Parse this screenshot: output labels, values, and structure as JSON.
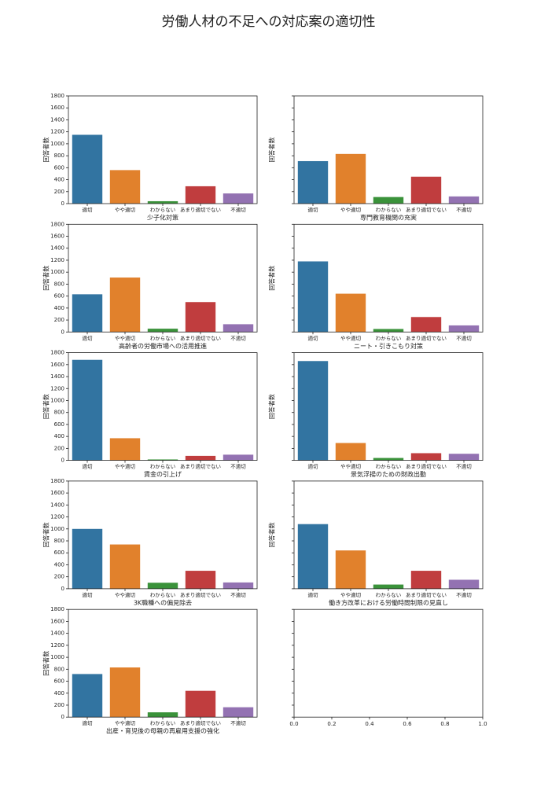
{
  "title": "労働人材の不足への対応案の適切性",
  "chart_data": [
    {
      "type": "bar",
      "xlabel": "少子化対策",
      "ylabel": "回答者数",
      "categories": [
        "適切",
        "やや適切",
        "わからない",
        "あまり適切でない",
        "不適切"
      ],
      "values": [
        1150,
        560,
        40,
        290,
        170
      ],
      "colors": [
        "#3274a1",
        "#e1812c",
        "#3a923a",
        "#c03d3e",
        "#9372b2"
      ],
      "ylim": [
        0,
        1800
      ],
      "yticks": [
        0,
        200,
        400,
        600,
        800,
        1000,
        1200,
        1400,
        1600,
        1800
      ],
      "ytick_labels": true
    },
    {
      "type": "bar",
      "xlabel": "専門教育機関の充実",
      "ylabel": "回答者数",
      "categories": [
        "適切",
        "やや適切",
        "わからない",
        "あまり適切でない",
        "不適切"
      ],
      "values": [
        710,
        830,
        110,
        450,
        120
      ],
      "colors": [
        "#3274a1",
        "#e1812c",
        "#3a923a",
        "#c03d3e",
        "#9372b2"
      ],
      "ylim": [
        0,
        1800
      ],
      "yticks": [
        0,
        200,
        400,
        600,
        800,
        1000,
        1200,
        1400,
        1600,
        1800
      ],
      "ytick_labels": false
    },
    {
      "type": "bar",
      "xlabel": "高齢者の労働市場への活用推進",
      "ylabel": "回答者数",
      "categories": [
        "適切",
        "やや適切",
        "わからない",
        "あまり適切でない",
        "不適切"
      ],
      "values": [
        630,
        910,
        55,
        500,
        130
      ],
      "colors": [
        "#3274a1",
        "#e1812c",
        "#3a923a",
        "#c03d3e",
        "#9372b2"
      ],
      "ylim": [
        0,
        1800
      ],
      "yticks": [
        0,
        200,
        400,
        600,
        800,
        1000,
        1200,
        1400,
        1600,
        1800
      ],
      "ytick_labels": true
    },
    {
      "type": "bar",
      "xlabel": "ニート・引きこもり対策",
      "ylabel": "回答者数",
      "categories": [
        "適切",
        "やや適切",
        "わからない",
        "あまり適切でない",
        "不適切"
      ],
      "values": [
        1180,
        640,
        50,
        250,
        110
      ],
      "colors": [
        "#3274a1",
        "#e1812c",
        "#3a923a",
        "#c03d3e",
        "#9372b2"
      ],
      "ylim": [
        0,
        1800
      ],
      "yticks": [
        0,
        200,
        400,
        600,
        800,
        1000,
        1200,
        1400,
        1600,
        1800
      ],
      "ytick_labels": false
    },
    {
      "type": "bar",
      "xlabel": "賃金の引上げ",
      "ylabel": "回答者数",
      "categories": [
        "適切",
        "やや適切",
        "わからない",
        "あまり適切でない",
        "不適切"
      ],
      "values": [
        1680,
        370,
        15,
        75,
        95
      ],
      "colors": [
        "#3274a1",
        "#e1812c",
        "#3a923a",
        "#c03d3e",
        "#9372b2"
      ],
      "ylim": [
        0,
        1800
      ],
      "yticks": [
        0,
        200,
        400,
        600,
        800,
        1000,
        1200,
        1400,
        1600,
        1800
      ],
      "ytick_labels": true
    },
    {
      "type": "bar",
      "xlabel": "景気浮揚のための財政出動",
      "ylabel": "回答者数",
      "categories": [
        "適切",
        "やや適切",
        "わからない",
        "あまり適切でない",
        "不適切"
      ],
      "values": [
        1660,
        290,
        40,
        120,
        110
      ],
      "colors": [
        "#3274a1",
        "#e1812c",
        "#3a923a",
        "#c03d3e",
        "#9372b2"
      ],
      "ylim": [
        0,
        1800
      ],
      "yticks": [
        0,
        200,
        400,
        600,
        800,
        1000,
        1200,
        1400,
        1600,
        1800
      ],
      "ytick_labels": false
    },
    {
      "type": "bar",
      "xlabel": "3K職種への偏見除去",
      "ylabel": "回答者数",
      "categories": [
        "適切",
        "やや適切",
        "わからない",
        "あまり適切でない",
        "不適切"
      ],
      "values": [
        1000,
        740,
        100,
        300,
        105
      ],
      "colors": [
        "#3274a1",
        "#e1812c",
        "#3a923a",
        "#c03d3e",
        "#9372b2"
      ],
      "ylim": [
        0,
        1800
      ],
      "yticks": [
        0,
        200,
        400,
        600,
        800,
        1000,
        1200,
        1400,
        1600,
        1800
      ],
      "ytick_labels": true
    },
    {
      "type": "bar",
      "xlabel": "働き方改革における労働時間制限の見直し",
      "ylabel": "回答者数",
      "categories": [
        "適切",
        "やや適切",
        "わからない",
        "あまり適切でない",
        "不適切"
      ],
      "values": [
        1080,
        640,
        70,
        300,
        150
      ],
      "colors": [
        "#3274a1",
        "#e1812c",
        "#3a923a",
        "#c03d3e",
        "#9372b2"
      ],
      "ylim": [
        0,
        1800
      ],
      "yticks": [
        0,
        200,
        400,
        600,
        800,
        1000,
        1200,
        1400,
        1600,
        1800
      ],
      "ytick_labels": false
    },
    {
      "type": "bar",
      "xlabel": "出産・育児後の母親の再雇用支援の強化",
      "ylabel": "回答者数",
      "categories": [
        "適切",
        "やや適切",
        "わからない",
        "あまり適切でない",
        "不適切"
      ],
      "values": [
        720,
        830,
        80,
        440,
        165
      ],
      "colors": [
        "#3274a1",
        "#e1812c",
        "#3a923a",
        "#c03d3e",
        "#9372b2"
      ],
      "ylim": [
        0,
        1800
      ],
      "yticks": [
        0,
        200,
        400,
        600,
        800,
        1000,
        1200,
        1400,
        1600,
        1800
      ],
      "ytick_labels": true
    },
    {
      "type": "blank",
      "xlim": [
        0,
        1
      ],
      "xticks": [
        {
          "value": 0,
          "label": "0.0"
        },
        {
          "value": 0.2,
          "label": "0.2"
        },
        {
          "value": 0.4,
          "label": "0.4"
        },
        {
          "value": 0.6,
          "label": "0.6"
        },
        {
          "value": 0.8,
          "label": "0.8"
        },
        {
          "value": 1,
          "label": "1.0"
        }
      ],
      "ylim": [
        0,
        1800
      ],
      "yticks": [
        0,
        200,
        400,
        600,
        800,
        1000,
        1200,
        1400,
        1600,
        1800
      ],
      "ytick_labels": false
    }
  ]
}
